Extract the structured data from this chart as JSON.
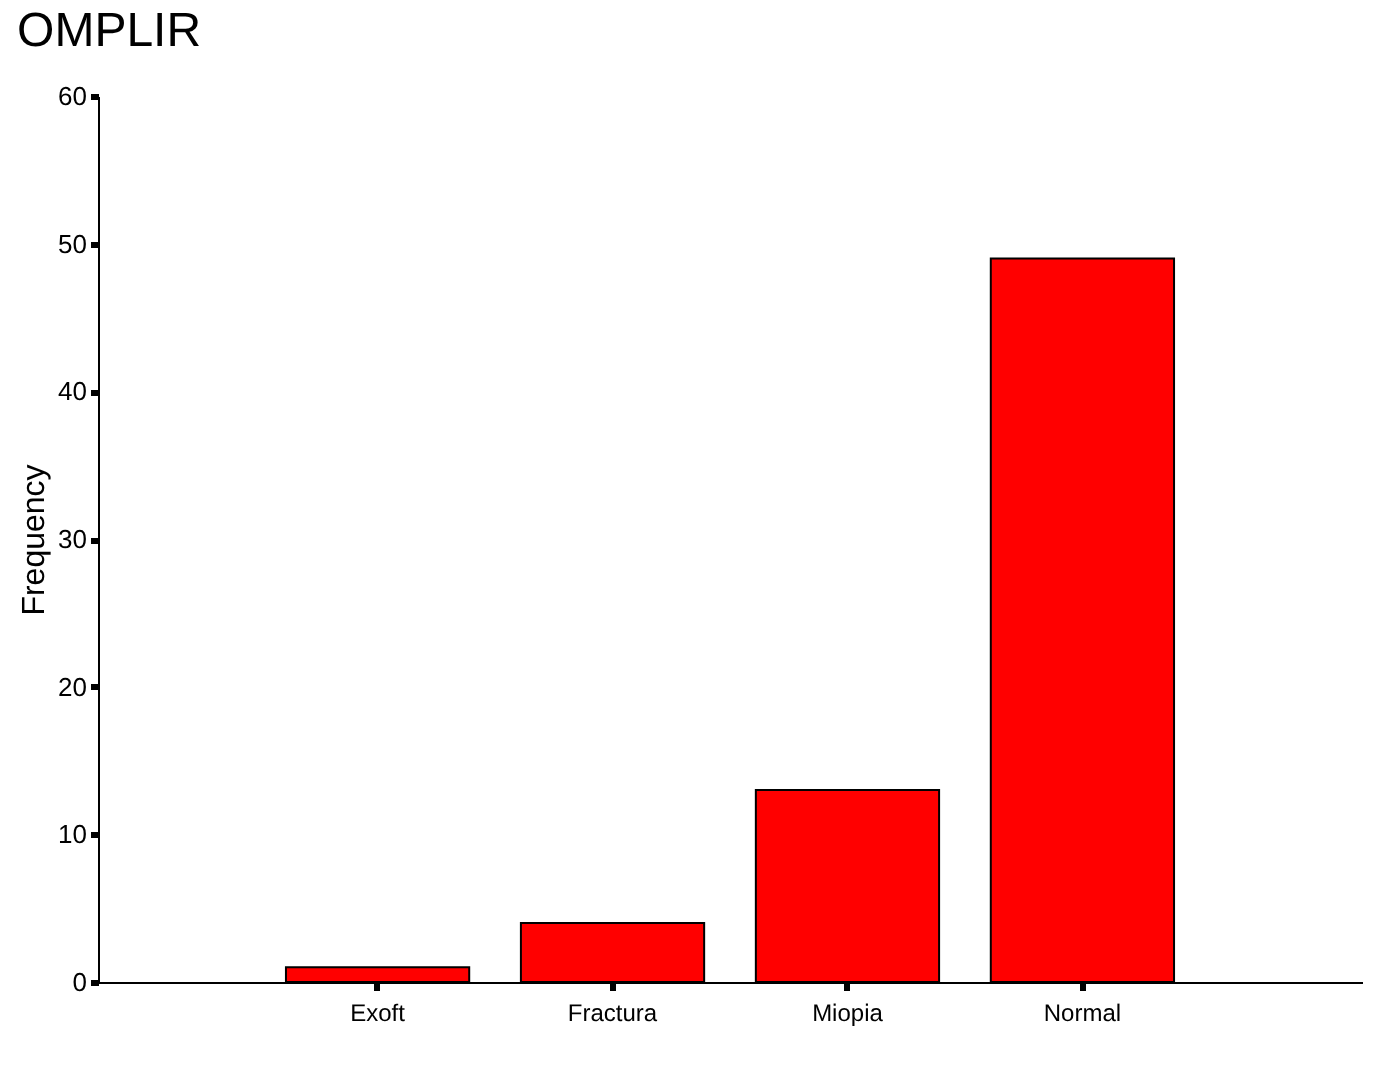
{
  "chart_data": {
    "type": "bar",
    "title": "OMPLIR",
    "ylabel": "Frequency",
    "categories": [
      "Exoft",
      "Fractura",
      "Miopia",
      "Normal"
    ],
    "values": [
      1,
      4,
      13,
      49
    ],
    "color": "#ff0000",
    "ylim": [
      0,
      60
    ],
    "yticks": [
      0,
      10,
      20,
      30,
      40,
      50,
      60
    ],
    "grid": false
  }
}
